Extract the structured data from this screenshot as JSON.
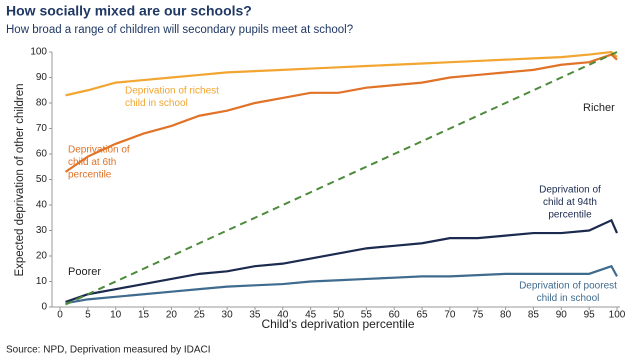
{
  "chart_data": {
    "type": "line",
    "title": "How socially mixed are our schools?",
    "subtitle": "How broad a range of children will secondary pupils meet at school?",
    "xlabel": "Child's deprivation percentile",
    "ylabel": "Expected deprivation of other children",
    "source": "Source: NPD, Deprivation measured by IDACI",
    "x": [
      1,
      5,
      10,
      15,
      20,
      25,
      30,
      35,
      40,
      45,
      50,
      55,
      60,
      65,
      70,
      75,
      80,
      85,
      90,
      95,
      99,
      100
    ],
    "series": [
      {
        "color": "#f2a531",
        "values": [
          83,
          85,
          88,
          89,
          90,
          91,
          92,
          92.5,
          93,
          93.5,
          94,
          94.5,
          95,
          95.5,
          96,
          96.5,
          97,
          97.5,
          98,
          99,
          100,
          98
        ]
      },
      {
        "color": "#e07328",
        "values": [
          53,
          59,
          64,
          68,
          71,
          75,
          77,
          80,
          82,
          84,
          84,
          86,
          87,
          88,
          90,
          91,
          92,
          93,
          95,
          96,
          99,
          97
        ]
      },
      {
        "color": "#1b2a4e",
        "values": [
          2,
          5,
          7,
          9,
          11,
          13,
          14,
          16,
          17,
          19,
          21,
          23,
          24,
          25,
          27,
          27,
          28,
          29,
          29,
          30,
          34,
          29
        ]
      },
      {
        "color": "#3f6b8e",
        "values": [
          1.5,
          3,
          4,
          5,
          6,
          7,
          8,
          8.5,
          9,
          10,
          10.5,
          11,
          11.5,
          12,
          12,
          12.5,
          13,
          13,
          13,
          13,
          16,
          12
        ]
      },
      {
        "color": "#4d8a3a",
        "dashed": true,
        "values": [
          1,
          5,
          10,
          15,
          20,
          25,
          30,
          35,
          40,
          45,
          50,
          55,
          60,
          65,
          70,
          75,
          80,
          85,
          90,
          95,
          99,
          100
        ]
      }
    ],
    "annotations": [
      {
        "lines": [
          "Deprivation of richest",
          "child in school"
        ],
        "color": "#f2a531"
      },
      {
        "lines": [
          "Deprivation of",
          "child at 6th",
          "percentile"
        ],
        "color": "#e07328"
      },
      {
        "lines": [
          "Richer"
        ],
        "color": "#222222"
      },
      {
        "lines": [
          "Poorer"
        ],
        "color": "#222222"
      },
      {
        "lines": [
          "Deprivation of",
          "child at 94th",
          "percentile"
        ],
        "color": "#1b2a4e"
      },
      {
        "lines": [
          "Deprivation of poorest",
          "child in school"
        ],
        "color": "#3f6b8e"
      }
    ],
    "xlim": [
      0,
      100
    ],
    "xticks": [
      0,
      5,
      10,
      15,
      20,
      25,
      30,
      35,
      40,
      45,
      50,
      55,
      60,
      65,
      70,
      75,
      80,
      85,
      90,
      95,
      100
    ],
    "ylim": [
      0,
      100
    ],
    "yticks": [
      0,
      10,
      20,
      30,
      40,
      50,
      60,
      70,
      80,
      90,
      100
    ],
    "grid": false
  }
}
